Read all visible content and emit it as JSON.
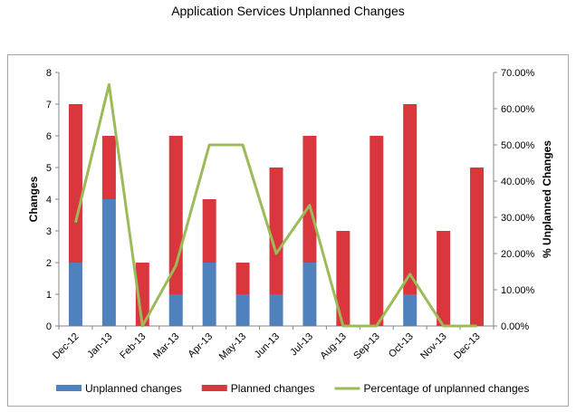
{
  "chart_data": {
    "type": "bar",
    "title": "Application Services Unplanned Changes",
    "categories": [
      "Dec-12",
      "Jan-13",
      "Feb-13",
      "Mar-13",
      "Apr-13",
      "May-13",
      "Jun-13",
      "Jul-13",
      "Aug-13",
      "Sep-13",
      "Oct-13",
      "Nov-13",
      "Dec-13"
    ],
    "series": [
      {
        "name": "Unplanned changes",
        "kind": "bar",
        "stack": "changes",
        "color": "#4f81bd",
        "values": [
          2,
          4,
          0,
          1,
          2,
          1,
          1,
          2,
          0,
          0,
          1,
          0,
          0
        ]
      },
      {
        "name": "Planned changes",
        "kind": "bar",
        "stack": "changes",
        "color": "#d9363e",
        "values": [
          5,
          2,
          2,
          5,
          2,
          1,
          4,
          4,
          3,
          6,
          6,
          3,
          5
        ]
      },
      {
        "name": "Percentage of unplanned changes",
        "kind": "line",
        "axis": "right",
        "color": "#9bbb59",
        "values": [
          28.57,
          66.67,
          0,
          16.67,
          50,
          50,
          20,
          33.33,
          0,
          0,
          14.29,
          0,
          0
        ]
      }
    ],
    "ylabel": "Changes",
    "ylim": [
      0,
      8
    ],
    "yticks": [
      "0",
      "1",
      "2",
      "3",
      "4",
      "5",
      "6",
      "7",
      "8"
    ],
    "y2label": "% Unplanned Changes",
    "y2lim": [
      0,
      70
    ],
    "y2ticks": [
      "0.00%",
      "10.00%",
      "20.00%",
      "30.00%",
      "40.00%",
      "50.00%",
      "60.00%",
      "70.00%"
    ],
    "legend": "bottom",
    "grid": false
  }
}
